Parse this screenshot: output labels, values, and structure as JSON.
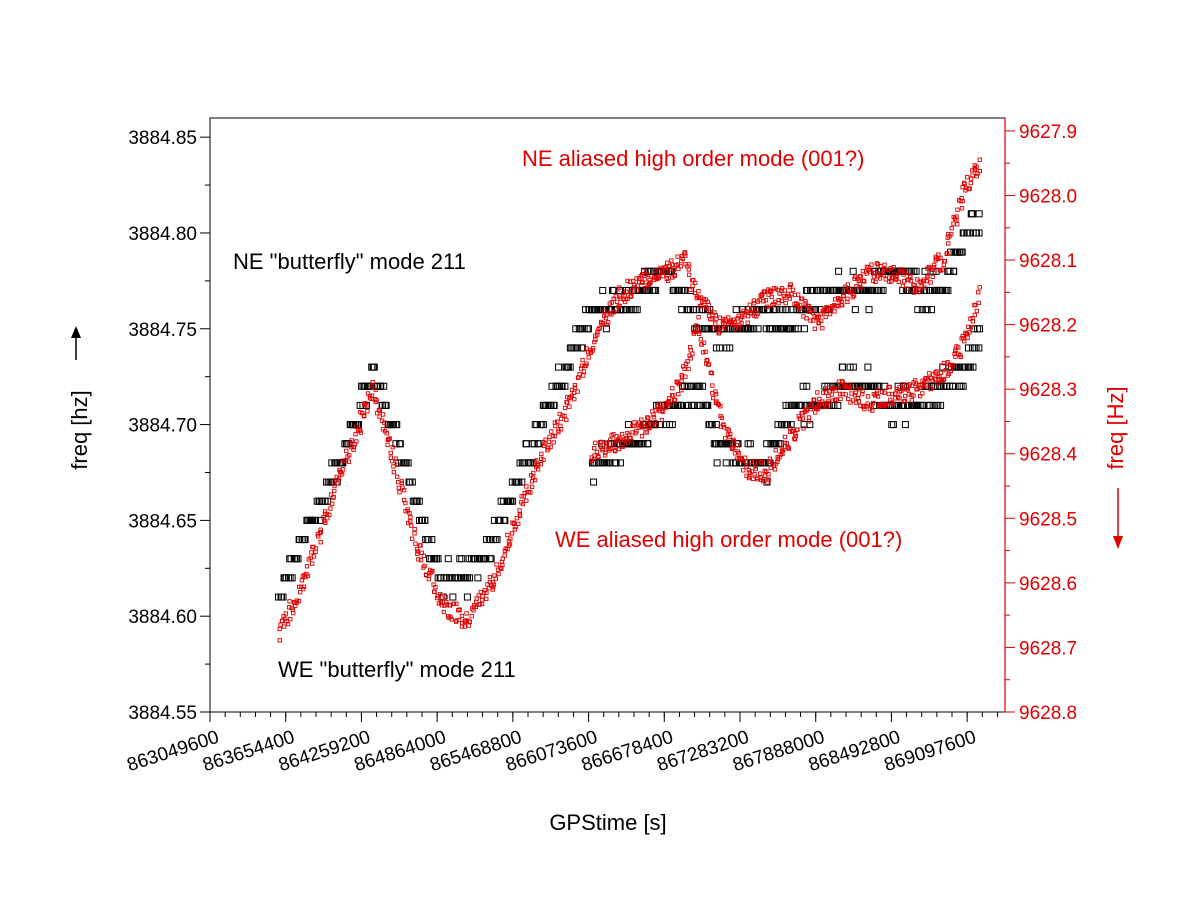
{
  "chart_data": {
    "type": "scatter",
    "xlabel": "GPStime [s]",
    "ylabel_left": "freq [hz]",
    "ylabel_right": "freq [Hz]",
    "xlim": [
      863049600,
      869400000
    ],
    "xticks": [
      "863049600",
      "863654400",
      "864259200",
      "864864000",
      "865468800",
      "866073600",
      "866678400",
      "867283200",
      "867888000",
      "868492800",
      "869097600"
    ],
    "ylim_left": [
      3884.55,
      3884.86
    ],
    "yticks_left": [
      "3884.55",
      "3884.60",
      "3884.65",
      "3884.70",
      "3884.75",
      "3884.80",
      "3884.85"
    ],
    "ylim_right": [
      9628.8,
      9627.88
    ],
    "yticks_right": [
      "9628.8",
      "9628.7",
      "9628.6",
      "9628.5",
      "9628.4",
      "9628.3",
      "9628.2",
      "9628.1",
      "9628.0",
      "9627.9"
    ],
    "right_axis_inverted": true,
    "grid": false,
    "colors": {
      "left_axis": "#000000",
      "right_axis": "#e00000"
    },
    "annotations": [
      {
        "text": "NE aliased high order mode (001?)",
        "color": "#e00000"
      },
      {
        "text": "NE \"butterfly\" mode 211",
        "color": "#000000"
      },
      {
        "text": "WE aliased high order mode (001?)",
        "color": "#e00000"
      },
      {
        "text": "WE \"butterfly\" mode 211",
        "color": "#000000"
      }
    ],
    "series": [
      {
        "axis": "left",
        "color": "#000000",
        "marker": "open-square",
        "trend_x": [
          863600000,
          863800000,
          864000000,
          864200000,
          864350000,
          864500000,
          864700000,
          864900000,
          865100000,
          865300000,
          865500000,
          865700000,
          865900000,
          866100000,
          866300000,
          866500000,
          866700000,
          866900000,
          867100000,
          867300000,
          867500000,
          867700000,
          867900000,
          868100000,
          868300000,
          868500000,
          868700000,
          868900000,
          869100000,
          869200000
        ],
        "trend_y": [
          3884.61,
          3884.64,
          3884.67,
          3884.7,
          3884.73,
          3884.7,
          3884.66,
          3884.62,
          3884.62,
          3884.64,
          3884.67,
          3884.7,
          3884.73,
          3884.76,
          3884.76,
          3884.77,
          3884.78,
          3884.76,
          3884.75,
          3884.75,
          3884.76,
          3884.75,
          3884.77,
          3884.77,
          3884.77,
          3884.78,
          3884.77,
          3884.77,
          3884.8,
          3884.81
        ]
      },
      {
        "axis": "left",
        "color": "#000000",
        "marker": "open-square",
        "trend_x": [
          866100000,
          866400000,
          866600000,
          866800000,
          866950000,
          867100000,
          867300000,
          867500000,
          867700000,
          867900000,
          868100000,
          868300000,
          868500000,
          868700000,
          868900000,
          869100000,
          869200000
        ],
        "trend_y": [
          3884.68,
          3884.69,
          3884.7,
          3884.71,
          3884.72,
          3884.69,
          3884.68,
          3884.68,
          3884.71,
          3884.71,
          3884.72,
          3884.72,
          3884.71,
          3884.71,
          3884.72,
          3884.73,
          3884.75
        ]
      },
      {
        "axis": "right",
        "color": "#e00000",
        "marker": "open-square",
        "trend_x": [
          863600000,
          863800000,
          864000000,
          864200000,
          864350000,
          864500000,
          864700000,
          864900000,
          865100000,
          865300000,
          865500000,
          865700000,
          865900000,
          866100000,
          866300000,
          866500000,
          866700000,
          866850000,
          866900000,
          867100000,
          867300000,
          867500000,
          867700000,
          867900000,
          868100000,
          868300000,
          868500000,
          868700000,
          868900000,
          869100000,
          869200000
        ],
        "trend_y": [
          9628.68,
          9628.6,
          9628.48,
          9628.38,
          9628.3,
          9628.4,
          9628.54,
          9628.63,
          9628.66,
          9628.6,
          9628.5,
          9628.4,
          9628.33,
          9628.23,
          9628.16,
          9628.13,
          9628.12,
          9628.1,
          9628.14,
          9628.2,
          9628.19,
          9628.16,
          9628.15,
          9628.2,
          9628.16,
          9628.12,
          9628.12,
          9628.14,
          9628.1,
          9627.98,
          9627.95
        ]
      },
      {
        "axis": "right",
        "color": "#e00000",
        "marker": "open-square",
        "trend_x": [
          866100000,
          866300000,
          866500000,
          866700000,
          866850000,
          866950000,
          867100000,
          867300000,
          867500000,
          867700000,
          867900000,
          868100000,
          868300000,
          868500000,
          868700000,
          868900000,
          869100000,
          869200000
        ],
        "trend_y": [
          9628.4,
          9628.38,
          9628.36,
          9628.33,
          9628.27,
          9628.2,
          9628.33,
          9628.42,
          9628.43,
          9628.37,
          9628.32,
          9628.3,
          9628.32,
          9628.31,
          9628.3,
          9628.28,
          9628.22,
          9628.15
        ]
      }
    ]
  }
}
